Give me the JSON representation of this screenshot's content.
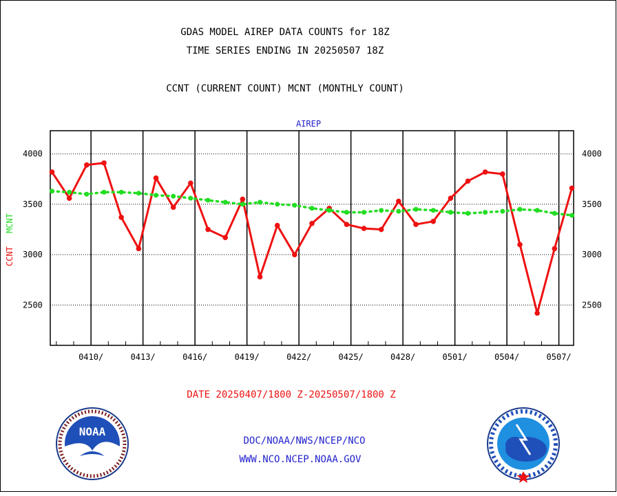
{
  "header": {
    "title_line1": "GDAS MODEL AIREP DATA COUNTS for 18Z",
    "title_line2": "TIME SERIES ENDING IN 20250507 18Z",
    "subtitle": "CCNT (CURRENT COUNT) MCNT (MONTHLY COUNT)"
  },
  "footer": {
    "date_range": "DATE 20250407/1800 Z-20250507/1800 Z",
    "org_path": "DOC/NOAA/NWS/NCEP/NCO",
    "website": "WWW.NCO.NCEP.NOAA.GOV"
  },
  "logos": {
    "left": {
      "icon": "noaa-logo",
      "text": "NOAA"
    },
    "right": {
      "icon": "national-weather-service-logo"
    }
  },
  "colors": {
    "ccnt": "#ee1111",
    "mcnt": "#22dd22",
    "label_blue": "#2222cc",
    "footer_red": "#ee1111"
  },
  "chart_data": {
    "type": "line",
    "title": "AIREP",
    "ylabel_series": [
      "CCNT",
      "MCNT"
    ],
    "ylim": [
      2100,
      4230
    ],
    "yticks": [
      2500,
      3000,
      3500,
      4000
    ],
    "ytick_labels": [
      "2500",
      "3000",
      "3500",
      "4000"
    ],
    "xlim": [
      -0.1,
      30.1
    ],
    "xticks": [
      2.25,
      5.25,
      8.25,
      11.25,
      14.25,
      17.25,
      20.25,
      23.25,
      26.25,
      29.25
    ],
    "xtick_labels": [
      "0410/",
      "0413/",
      "0416/",
      "0419/",
      "0422/",
      "0425/",
      "0428/",
      "0501/",
      "0504/",
      "0507/"
    ],
    "x_minor_ticks_per_day": true,
    "grid": true,
    "x": [
      0,
      1,
      2,
      3,
      4,
      5,
      6,
      7,
      8,
      9,
      10,
      11,
      12,
      13,
      14,
      15,
      16,
      17,
      18,
      19,
      20,
      21,
      22,
      23,
      24,
      25,
      26,
      27,
      28,
      29,
      30
    ],
    "series": [
      {
        "name": "CCNT",
        "color": "#ee1111",
        "style": "solid",
        "values": [
          3820,
          3560,
          3890,
          3910,
          3370,
          3060,
          3760,
          3470,
          3710,
          3250,
          3170,
          3550,
          2780,
          3290,
          3000,
          3310,
          3460,
          3300,
          3260,
          3250,
          3530,
          3300,
          3330,
          3560,
          3730,
          3820,
          3800,
          3100,
          2420,
          3060,
          3660
        ]
      },
      {
        "name": "MCNT",
        "color": "#22dd22",
        "style": "dotted",
        "values": [
          3630,
          3620,
          3600,
          3620,
          3620,
          3610,
          3590,
          3580,
          3560,
          3540,
          3520,
          3500,
          3520,
          3500,
          3490,
          3460,
          3440,
          3420,
          3420,
          3440,
          3430,
          3450,
          3440,
          3420,
          3410,
          3420,
          3430,
          3450,
          3440,
          3410,
          3390
        ]
      }
    ]
  }
}
